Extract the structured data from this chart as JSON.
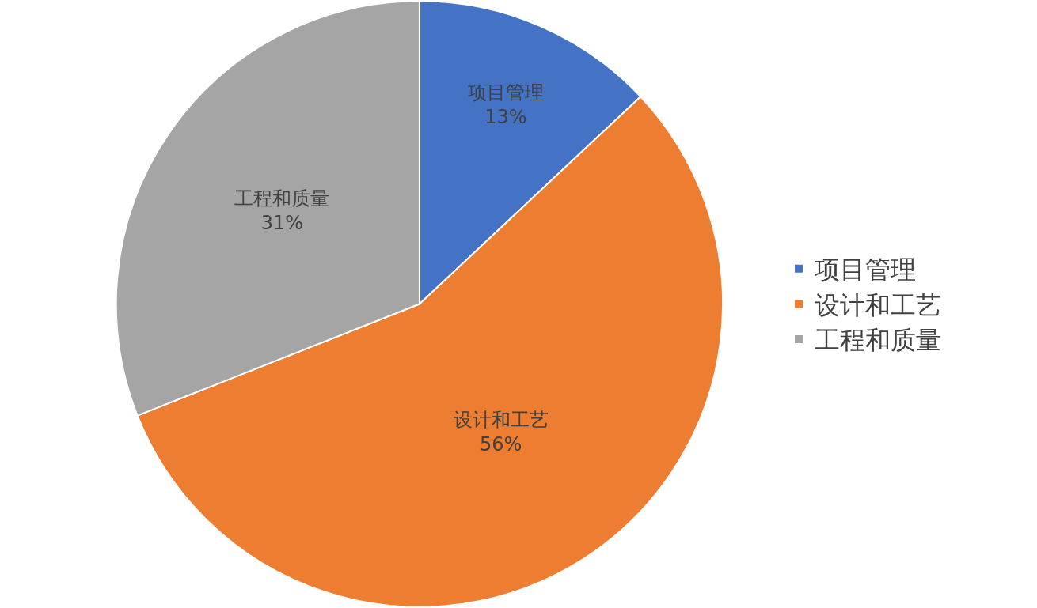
{
  "chart_data": {
    "type": "pie",
    "categories": [
      "项目管理",
      "设计和工艺",
      "工程和质量"
    ],
    "values": [
      13,
      56,
      31
    ],
    "value_labels": [
      "13%",
      "56%",
      "31%"
    ],
    "colors": [
      "#4472c4",
      "#ed7d31",
      "#a5a5a5"
    ],
    "legend": "right"
  }
}
